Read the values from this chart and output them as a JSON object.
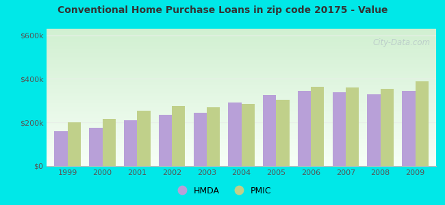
{
  "title": "Conventional Home Purchase Loans in zip code 20175 - Value",
  "years": [
    1999,
    2000,
    2001,
    2002,
    2003,
    2004,
    2005,
    2006,
    2007,
    2008,
    2009
  ],
  "hmda": [
    160000,
    175000,
    210000,
    235000,
    245000,
    290000,
    325000,
    345000,
    340000,
    330000,
    345000
  ],
  "pmic": [
    200000,
    215000,
    255000,
    275000,
    270000,
    285000,
    305000,
    365000,
    360000,
    355000,
    390000
  ],
  "hmda_color": "#b8a0d8",
  "pmic_color": "#c0d08a",
  "outer_background": "#00e8e8",
  "title_color": "#333333",
  "ytick_labels": [
    "$0",
    "$200k",
    "$400k",
    "$600k"
  ],
  "ytick_values": [
    0,
    200000,
    400000,
    600000
  ],
  "ylim": [
    0,
    630000
  ],
  "grid_color": "#e0e8e0",
  "legend_hmda": "HMDA",
  "legend_pmic": "PMIC",
  "watermark": "City-Data.com",
  "bar_width": 0.38
}
